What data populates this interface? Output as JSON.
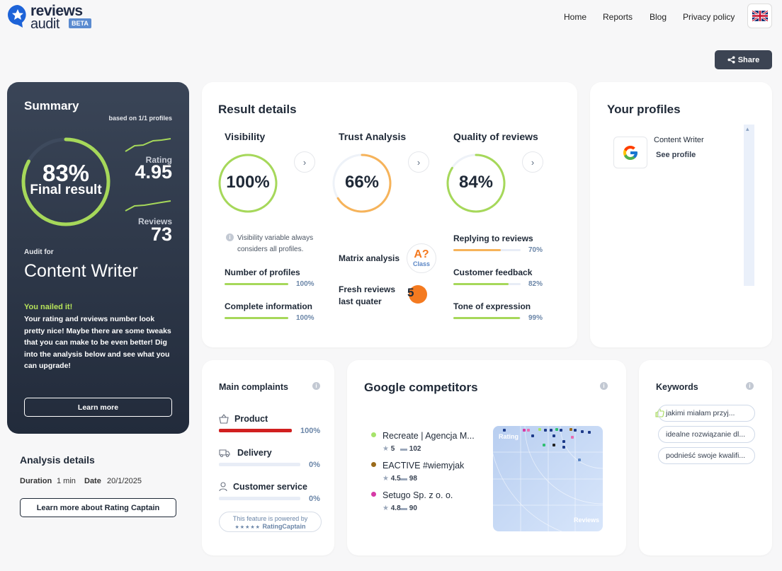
{
  "header": {
    "logo_line1": "reviews",
    "logo_line2": "audit",
    "beta": "BETA",
    "nav": [
      "Home",
      "Reports",
      "Blog",
      "Privacy policy"
    ],
    "share": "Share"
  },
  "summary": {
    "title": "Summary",
    "based_on": "based on 1/1 profiles",
    "final_pct": "83%",
    "final_label": "Final result",
    "final_value": 0.83,
    "rating_label": "Rating",
    "rating_value": "4.95",
    "reviews_label": "Reviews",
    "reviews_value": "73",
    "audit_for": "Audit for",
    "audit_name": "Content Writer",
    "nailed": "You nailed it!",
    "nailed_text": "Your rating and reviews number look pretty nice! Maybe there are some tweaks that you can make to be even better! Dig into the analysis below and see what you can upgrade!",
    "learn_more": "Learn more"
  },
  "analysis": {
    "title": "Analysis details",
    "duration_label": "Duration",
    "duration_value": "1 min",
    "date_label": "Date",
    "date_value": "20/1/2025",
    "button": "Learn more about Rating Captain"
  },
  "result": {
    "title": "Result details",
    "visibility": {
      "title": "Visibility",
      "pct": "100%",
      "value": 1.0,
      "note": "Visibility variable always considers all profiles.",
      "metrics": [
        {
          "label": "Number of profiles",
          "pct": "100%",
          "value": 1.0
        },
        {
          "label": "Complete information",
          "pct": "100%",
          "value": 1.0
        }
      ]
    },
    "trust": {
      "title": "Trust Analysis",
      "pct": "66%",
      "value": 0.66,
      "matrix_label": "Matrix analysis",
      "matrix_grade": "A?",
      "matrix_class": "Class",
      "fresh_label_1": "Fresh reviews",
      "fresh_label_2": "last quater",
      "fresh_value": "5"
    },
    "quality": {
      "title": "Quality of reviews",
      "pct": "84%",
      "value": 0.84,
      "metrics": [
        {
          "label": "Replying to reviews",
          "pct": "70%",
          "value": 0.7
        },
        {
          "label": "Customer feedback",
          "pct": "82%",
          "value": 0.82
        },
        {
          "label": "Tone of expression",
          "pct": "99%",
          "value": 0.99
        }
      ]
    }
  },
  "profiles": {
    "title": "Your profiles",
    "name": "Content Writer",
    "link": "See profile"
  },
  "complaints": {
    "title": "Main complaints",
    "items": [
      {
        "label": "Product",
        "pct": "100%",
        "value": 1.0
      },
      {
        "label": "Delivery",
        "pct": "0%",
        "value": 0.0
      },
      {
        "label": "Customer service",
        "pct": "0%",
        "value": 0.0
      }
    ],
    "powered_1": "This feature is powered by",
    "powered_2": "RatingCaptain"
  },
  "competitors": {
    "title": "Google competitors",
    "items": [
      {
        "name": "Recreate | Agencja M...",
        "rating": "5",
        "reviews": "102",
        "color": "#a6e36a"
      },
      {
        "name": "EACTIVE #wiemyjak",
        "rating": "4.5",
        "reviews": "98",
        "color": "#9a6a1a"
      },
      {
        "name": "Setugo Sp. z o. o.",
        "rating": "4.8",
        "reviews": "90",
        "color": "#d63aa6"
      }
    ],
    "map_rating": "Rating",
    "map_reviews": "Reviews"
  },
  "keywords": {
    "title": "Keywords",
    "items": [
      "jakimi miałam przyj...",
      "idealne rozwiązanie dl...",
      "podnieść swoje kwalifi..."
    ]
  },
  "colors": {
    "accent_green": "#a6d85a",
    "accent_orange": "#f6b35a",
    "danger": "#d11f1f",
    "fresh_orange": "#f47a20"
  }
}
